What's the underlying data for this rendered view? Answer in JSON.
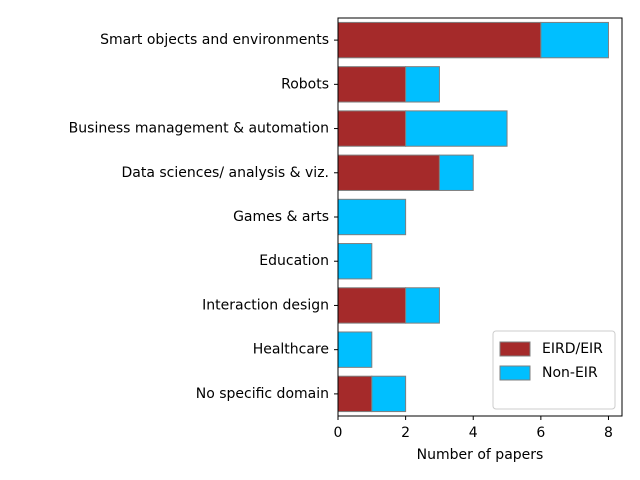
{
  "chart_data": {
    "type": "bar",
    "orientation": "horizontal",
    "stacked": true,
    "categories": [
      "Smart objects and environments",
      "Robots",
      "Business management & automation",
      "Data sciences/ analysis & viz.",
      "Games & arts",
      "Education",
      "Interaction design",
      "Healthcare",
      "No specific domain"
    ],
    "series": [
      {
        "name": "EIRD/EIR",
        "color": "#a52a2a",
        "values": [
          6,
          2,
          2,
          3,
          0,
          0,
          2,
          0,
          1
        ]
      },
      {
        "name": "Non-EIR",
        "color": "#00bfff",
        "values": [
          2,
          1,
          3,
          1,
          2,
          1,
          1,
          1,
          1
        ]
      }
    ],
    "title": "",
    "xlabel": "Number of papers",
    "ylabel": "",
    "xlim": [
      0,
      8.4
    ],
    "xticks": [
      0,
      2,
      4,
      6,
      8
    ],
    "grid": false,
    "legend_position": "lower-right"
  }
}
